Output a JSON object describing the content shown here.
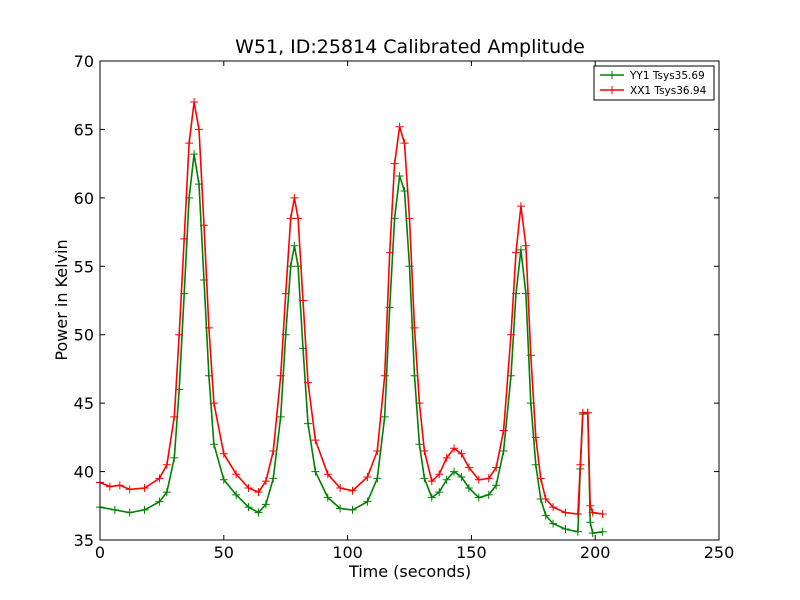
{
  "chart_data": {
    "type": "line",
    "title": "W51, ID:25814 Calibrated Amplitude",
    "xlabel": "Time (seconds)",
    "ylabel": "Power in Kelvin",
    "xlim": [
      0,
      250
    ],
    "ylim": [
      35,
      70
    ],
    "xticks": [
      "0",
      "50",
      "100",
      "150",
      "200",
      "250"
    ],
    "yticks": [
      "35",
      "40",
      "45",
      "50",
      "55",
      "60",
      "65",
      "70"
    ],
    "grid": false,
    "legend_position": "top-right",
    "marker": "+",
    "series": [
      {
        "name": "YY1 Tsys35.69",
        "color": "#008000",
        "points": [
          [
            0,
            37.4
          ],
          [
            6,
            37.2
          ],
          [
            12,
            37.0
          ],
          [
            18,
            37.2
          ],
          [
            24,
            37.8
          ],
          [
            27,
            38.5
          ],
          [
            30,
            41
          ],
          [
            32,
            46
          ],
          [
            34,
            53
          ],
          [
            36,
            60
          ],
          [
            38,
            63.2
          ],
          [
            40,
            61
          ],
          [
            42,
            54
          ],
          [
            44,
            47
          ],
          [
            46,
            42
          ],
          [
            50,
            39.4
          ],
          [
            55,
            38.3
          ],
          [
            60,
            37.4
          ],
          [
            64,
            37.0
          ],
          [
            67,
            37.6
          ],
          [
            70,
            39.5
          ],
          [
            73,
            44
          ],
          [
            75,
            50
          ],
          [
            77,
            55
          ],
          [
            78.5,
            56.5
          ],
          [
            80,
            55
          ],
          [
            82,
            49
          ],
          [
            84,
            43.5
          ],
          [
            87,
            40
          ],
          [
            92,
            38.1
          ],
          [
            97,
            37.3
          ],
          [
            102,
            37.2
          ],
          [
            108,
            37.8
          ],
          [
            112,
            39.5
          ],
          [
            115,
            44
          ],
          [
            117,
            52
          ],
          [
            119,
            58.5
          ],
          [
            121,
            61.6
          ],
          [
            123,
            60.5
          ],
          [
            125,
            55
          ],
          [
            127,
            47
          ],
          [
            129,
            42
          ],
          [
            131,
            39.5
          ],
          [
            134,
            38.1
          ],
          [
            137,
            38.5
          ],
          [
            140,
            39.4
          ],
          [
            143,
            40.0
          ],
          [
            146,
            39.6
          ],
          [
            149,
            38.8
          ],
          [
            153,
            38.1
          ],
          [
            157,
            38.3
          ],
          [
            160,
            39
          ],
          [
            163,
            41.5
          ],
          [
            166,
            47
          ],
          [
            168,
            53
          ],
          [
            170,
            56.2
          ],
          [
            172,
            53
          ],
          [
            174,
            45
          ],
          [
            176,
            40.5
          ],
          [
            178,
            38
          ],
          [
            180,
            36.8
          ],
          [
            183,
            36.2
          ],
          [
            188,
            35.8
          ],
          [
            193,
            35.6
          ],
          [
            194,
            40.2
          ],
          [
            195,
            44.2
          ],
          [
            197,
            44.3
          ],
          [
            198,
            36.3
          ],
          [
            199,
            35.5
          ],
          [
            203,
            35.6
          ]
        ]
      },
      {
        "name": "XX1 Tsys36.94",
        "color": "#ff0000",
        "points": [
          [
            0,
            39.2
          ],
          [
            4,
            38.9
          ],
          [
            8,
            39.0
          ],
          [
            12,
            38.7
          ],
          [
            18,
            38.8
          ],
          [
            24,
            39.5
          ],
          [
            27,
            40.5
          ],
          [
            30,
            44
          ],
          [
            32,
            50
          ],
          [
            34,
            57
          ],
          [
            36,
            64
          ],
          [
            38,
            67.0
          ],
          [
            40,
            65
          ],
          [
            42,
            58
          ],
          [
            44,
            50.5
          ],
          [
            46,
            45
          ],
          [
            50,
            41.3
          ],
          [
            55,
            39.8
          ],
          [
            60,
            38.8
          ],
          [
            64,
            38.5
          ],
          [
            67,
            39.3
          ],
          [
            70,
            41.5
          ],
          [
            73,
            47
          ],
          [
            75,
            53
          ],
          [
            77,
            58.5
          ],
          [
            78.5,
            60.0
          ],
          [
            80,
            58.5
          ],
          [
            82,
            52.5
          ],
          [
            84,
            46.5
          ],
          [
            87,
            42.3
          ],
          [
            92,
            39.8
          ],
          [
            97,
            38.8
          ],
          [
            102,
            38.6
          ],
          [
            108,
            39.6
          ],
          [
            112,
            41.5
          ],
          [
            115,
            47
          ],
          [
            117,
            56
          ],
          [
            119,
            62.5
          ],
          [
            121,
            65.2
          ],
          [
            123,
            64
          ],
          [
            125,
            58.5
          ],
          [
            127,
            50.5
          ],
          [
            129,
            45
          ],
          [
            131,
            41.5
          ],
          [
            134,
            39.3
          ],
          [
            137,
            39.8
          ],
          [
            140,
            41.0
          ],
          [
            143,
            41.7
          ],
          [
            146,
            41.3
          ],
          [
            149,
            40.3
          ],
          [
            153,
            39.4
          ],
          [
            157,
            39.5
          ],
          [
            160,
            40.3
          ],
          [
            163,
            43
          ],
          [
            166,
            50
          ],
          [
            168,
            56
          ],
          [
            170,
            59.4
          ],
          [
            172,
            56.5
          ],
          [
            174,
            48.5
          ],
          [
            176,
            42.5
          ],
          [
            178,
            39.5
          ],
          [
            180,
            38
          ],
          [
            183,
            37.4
          ],
          [
            188,
            37
          ],
          [
            193,
            36.9
          ],
          [
            194,
            40.5
          ],
          [
            195,
            44.3
          ],
          [
            197,
            44.3
          ],
          [
            198,
            37.5
          ],
          [
            199,
            37
          ],
          [
            203,
            36.9
          ]
        ]
      }
    ]
  }
}
